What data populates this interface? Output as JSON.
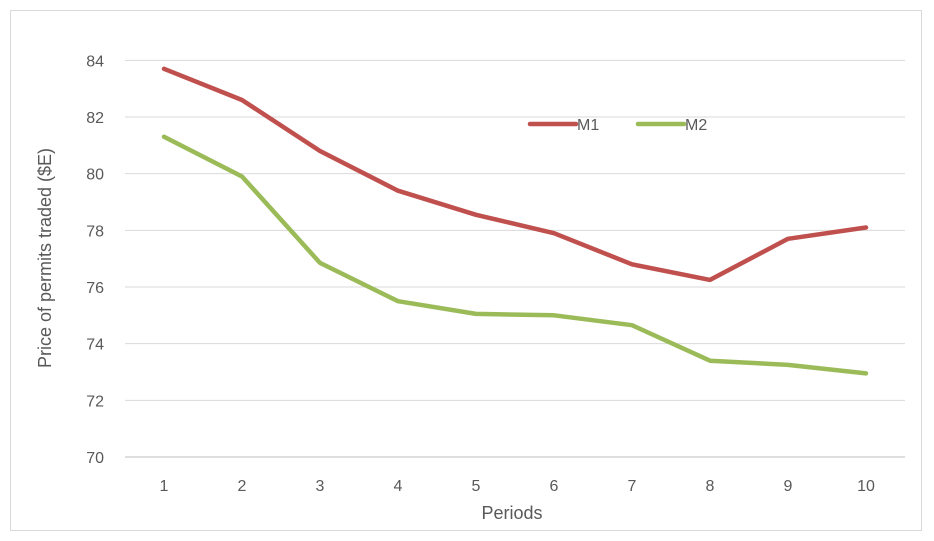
{
  "chart_data": {
    "type": "line",
    "title": "",
    "xlabel": "Periods",
    "ylabel": "Price of permits traded ($E)",
    "categories": [
      "1",
      "2",
      "3",
      "4",
      "5",
      "6",
      "7",
      "8",
      "9",
      "10"
    ],
    "y_ticks": [
      "70",
      "72",
      "74",
      "76",
      "78",
      "80",
      "82",
      "84"
    ],
    "ylim": [
      70,
      85
    ],
    "grid": true,
    "legend_position": "top-center",
    "series": [
      {
        "name": "M1",
        "color": "#c0504d",
        "values": [
          83.7,
          82.6,
          80.8,
          79.4,
          78.55,
          77.9,
          76.8,
          76.25,
          77.7,
          78.1
        ]
      },
      {
        "name": "M2",
        "color": "#9bbb59",
        "values": [
          81.3,
          79.9,
          76.85,
          75.5,
          75.05,
          75.0,
          74.65,
          73.4,
          73.25,
          72.95
        ]
      }
    ]
  }
}
